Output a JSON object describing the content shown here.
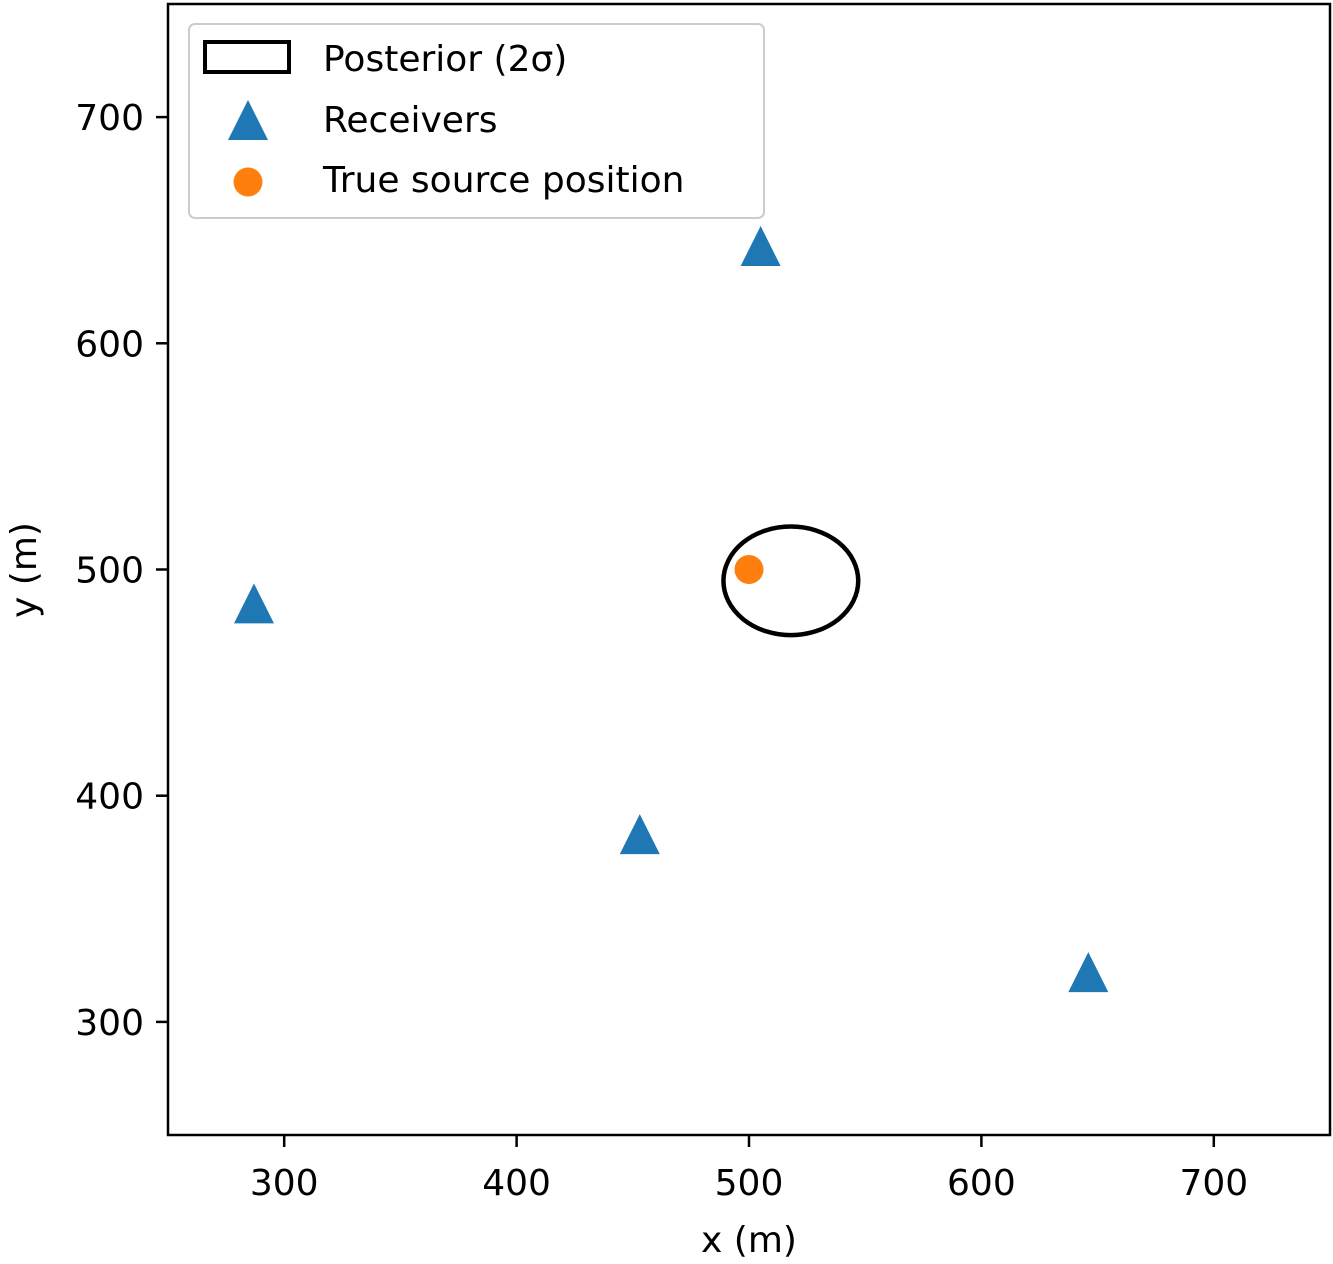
{
  "chart_data": {
    "type": "scatter",
    "xlabel": "x (m)",
    "ylabel": "y (m)",
    "xlim": [
      250,
      750
    ],
    "ylim": [
      250,
      750
    ],
    "xticks": [
      300,
      400,
      500,
      600,
      700
    ],
    "yticks": [
      300,
      400,
      500,
      600,
      700
    ],
    "grid": false,
    "legend": {
      "placement": "top-left",
      "entries": [
        "Posterior (2σ)",
        "Receivers",
        "True source position"
      ]
    },
    "series": [
      {
        "name": "Receivers",
        "marker": "triangle",
        "color": "#1f77b4",
        "points": [
          {
            "x": 505,
            "y": 643
          },
          {
            "x": 287,
            "y": 485
          },
          {
            "x": 453,
            "y": 383
          },
          {
            "x": 646,
            "y": 322
          }
        ]
      },
      {
        "name": "True source position",
        "marker": "circle",
        "color": "#ff7f0e",
        "points": [
          {
            "x": 500,
            "y": 500
          }
        ]
      }
    ],
    "ellipse": {
      "name": "Posterior (2σ)",
      "cx": 518,
      "cy": 495,
      "rx": 29,
      "ry": 24,
      "color": "#000000"
    }
  }
}
